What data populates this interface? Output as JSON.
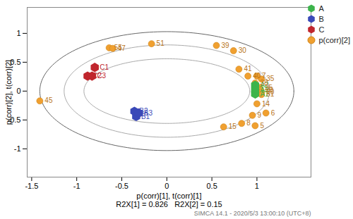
{
  "chart_data": {
    "type": "scatter",
    "x_label": "p(corr)[1], t(corr)[1]",
    "y_label": "p(corr)[2], t(corr)[2]",
    "annotations": [
      "R2X[1] = 0.826   R2X[2] = 0.15",
      "SIMCA 14.1 - 2020/5/3 13:00:10 (UTC+8)"
    ],
    "xlim": [
      -1.55,
      1.6
    ],
    "ylim": [
      -1.49,
      1.45
    ],
    "xticks": [
      -1.5,
      -1,
      -0.5,
      0,
      0.5,
      1
    ],
    "yticks": [
      -1,
      -0.5,
      0,
      0.5,
      1
    ],
    "legend": "top-right",
    "ellipses": [
      {
        "rx": 1.41,
        "ry": 1.03
      },
      {
        "rx": 1.14,
        "ry": 0.8
      },
      {
        "rx": 0.92,
        "ry": 0.56
      }
    ],
    "series": [
      {
        "name": "A",
        "color": "#3cb44b",
        "marker": "hexagon",
        "labels": [
          "A1",
          "A2",
          "A3"
        ],
        "x": [
          0.98,
          0.98,
          0.98
        ],
        "y": [
          -0.05,
          0.1,
          0.02
        ]
      },
      {
        "name": "B",
        "color": "#3a49b8",
        "marker": "hexagon",
        "labels": [
          "B1",
          "B2",
          "B3"
        ],
        "x": [
          -0.34,
          -0.36,
          -0.31
        ],
        "y": [
          -0.44,
          -0.35,
          -0.38
        ]
      },
      {
        "name": "C",
        "color": "#c0262d",
        "marker": "hexagon",
        "labels": [
          "C1",
          "C2",
          "C3"
        ],
        "x": [
          -0.8,
          -0.88,
          -0.83
        ],
        "y": [
          0.41,
          0.26,
          0.26
        ]
      },
      {
        "name": "p(corr)[2]",
        "color": "#f0a030",
        "marker": "circle",
        "labels": [
          "55",
          "47",
          "51",
          "39",
          "30",
          "41",
          "40",
          "7",
          "35",
          "38",
          "25",
          "29",
          "20",
          "31",
          "14",
          "6",
          "9",
          "8",
          "5",
          "15",
          "45"
        ],
        "x": [
          -0.64,
          -0.6,
          -0.17,
          0.55,
          0.74,
          0.8,
          0.9,
          1.0,
          1.05,
          0.98,
          1.03,
          1.04,
          1.05,
          1.05,
          1.0,
          1.1,
          0.95,
          0.83,
          0.98,
          0.63,
          -1.41
        ],
        "y": [
          0.75,
          0.74,
          0.82,
          0.79,
          0.7,
          0.38,
          0.26,
          0.26,
          0.21,
          0.14,
          0.06,
          0.02,
          -0.02,
          -0.06,
          -0.22,
          -0.38,
          -0.42,
          -0.56,
          -0.6,
          -0.62,
          -0.17
        ]
      }
    ]
  }
}
